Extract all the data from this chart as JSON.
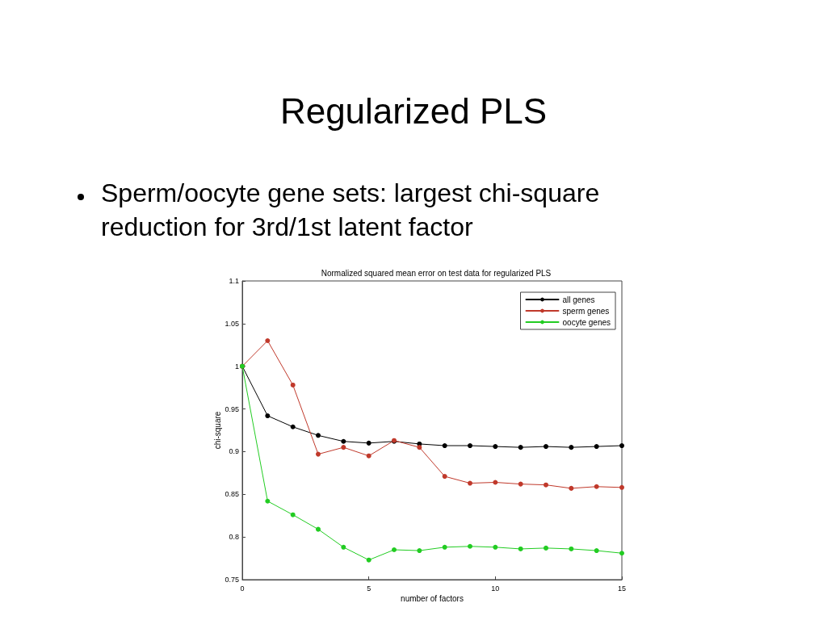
{
  "chart_data": {
    "type": "line",
    "title": "Regularized PLS",
    "subtitle": "Sperm/oocyte gene sets: largest chi-square reduction for 3rd/1st latent factor",
    "annotations": [
      "Normalized squared mean error on test data for regularized PLS"
    ],
    "xlabel": "number of factors",
    "ylabel": "chi-square",
    "x": [
      0,
      1,
      2,
      3,
      4,
      5,
      6,
      7,
      8,
      9,
      10,
      11,
      12,
      13,
      14,
      15
    ],
    "series": [
      {
        "name": "all genes",
        "color": "#000000",
        "values": [
          1.0,
          0.942,
          0.929,
          0.919,
          0.912,
          0.91,
          0.912,
          0.909,
          0.907,
          0.907,
          0.906,
          0.905,
          0.906,
          0.905,
          0.906,
          0.907
        ]
      },
      {
        "name": "sperm genes",
        "color": "#c0392b",
        "values": [
          1.0,
          1.03,
          0.978,
          0.897,
          0.905,
          0.895,
          0.913,
          0.905,
          0.871,
          0.863,
          0.864,
          0.862,
          0.861,
          0.857,
          0.859,
          0.858
        ]
      },
      {
        "name": "oocyte genes",
        "color": "#22cc22",
        "values": [
          1.0,
          0.842,
          0.826,
          0.809,
          0.788,
          0.773,
          0.785,
          0.784,
          0.788,
          0.789,
          0.788,
          0.786,
          0.787,
          0.786,
          0.784,
          0.781
        ]
      }
    ],
    "xlim": [
      0,
      15
    ],
    "xticks": [
      0,
      5,
      10,
      15
    ],
    "ylim": [
      0.75,
      1.1
    ],
    "yticks": [
      0.75,
      0.8,
      0.85,
      0.9,
      0.95,
      1,
      1.05,
      1.1
    ],
    "grid": false,
    "legend": "top right",
    "marker": "circle",
    "line_style": "solid"
  }
}
